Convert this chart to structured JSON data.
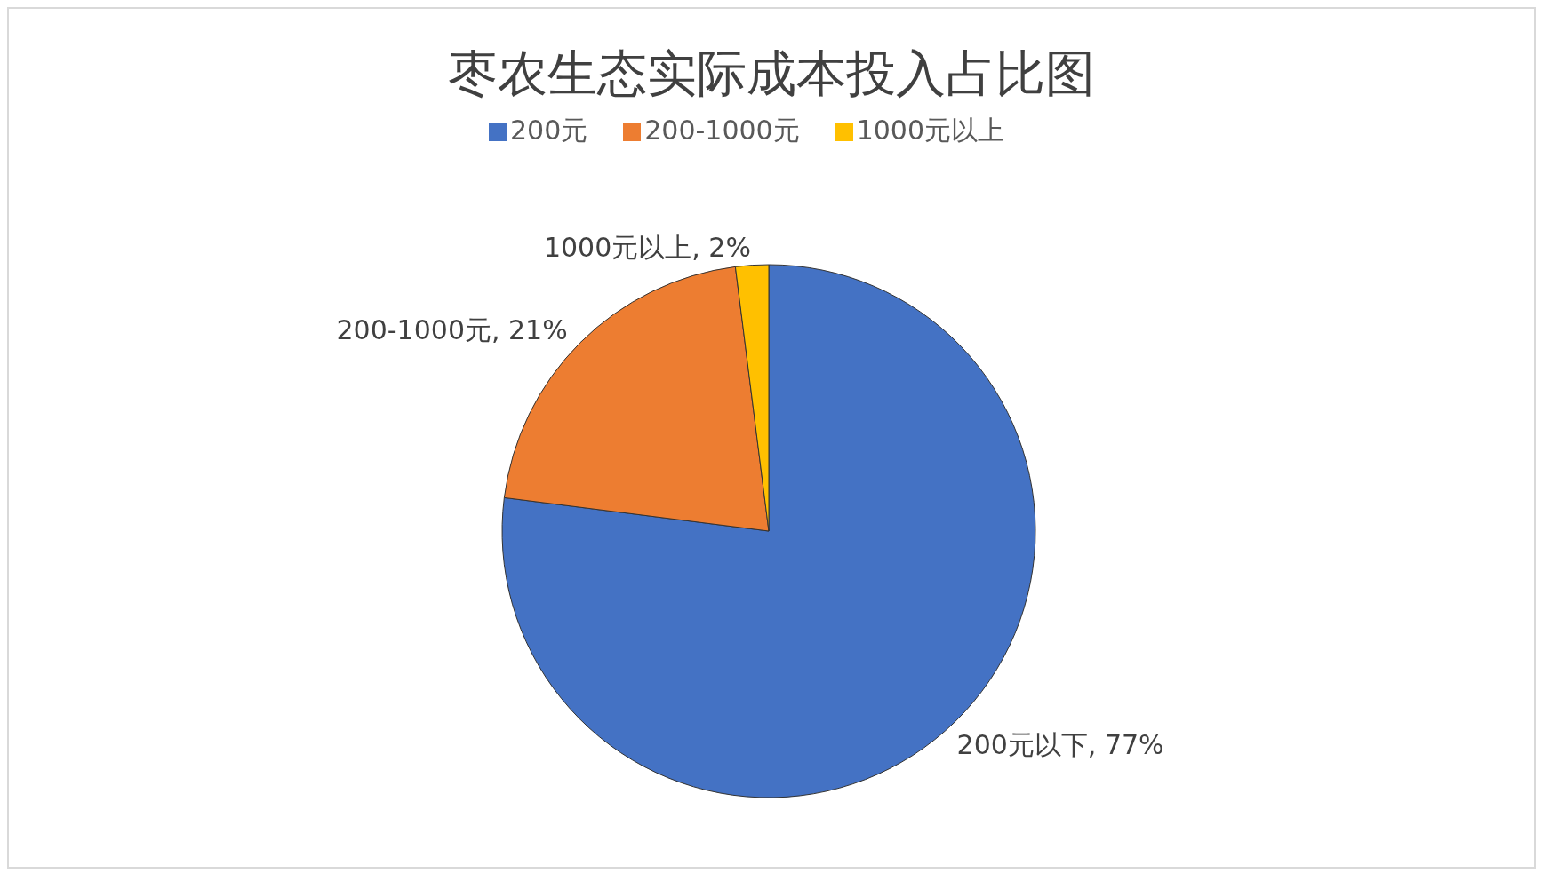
{
  "chart_data": {
    "type": "pie",
    "title": "枣农生态实际成本投入占比图",
    "categories": [
      "200元",
      "200-1000元",
      "1000元以上"
    ],
    "values": [
      77,
      21,
      2
    ],
    "colors": [
      "#4472c4",
      "#ed7d31",
      "#ffc000"
    ],
    "value_labels": [
      "200元以下, 77%",
      "200-1000元, 21%",
      "1000元以上, 2%"
    ],
    "legend": "top"
  }
}
